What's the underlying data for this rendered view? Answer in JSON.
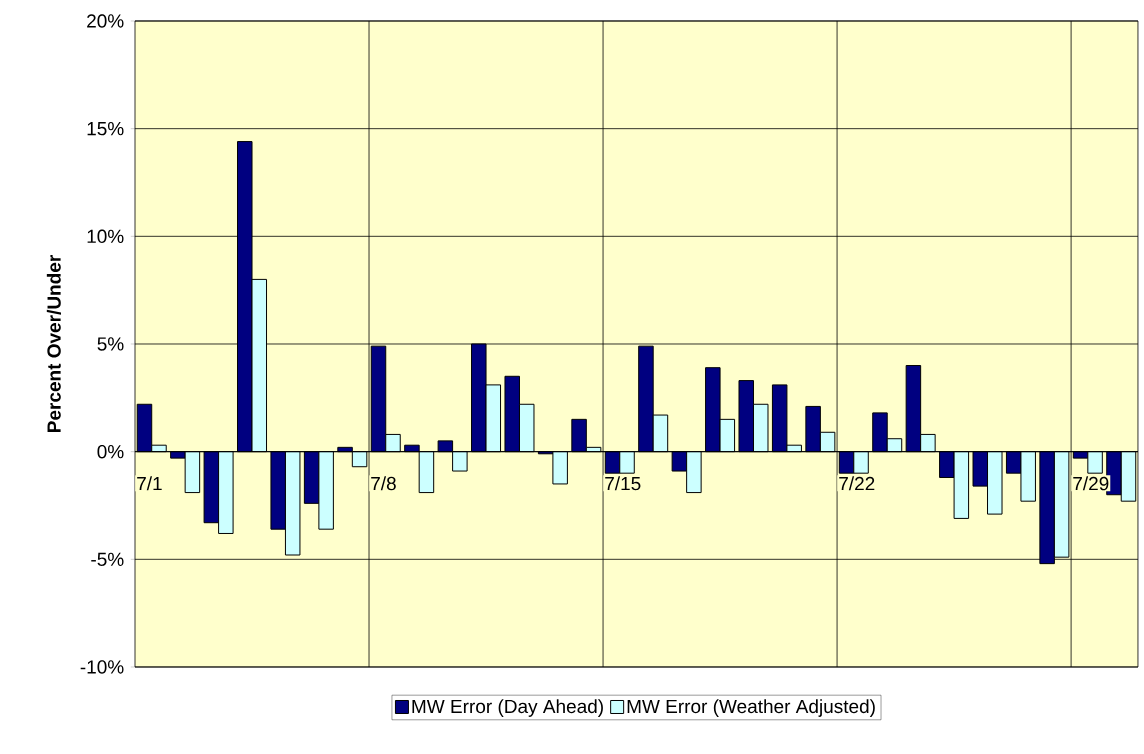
{
  "chart_data": {
    "type": "bar",
    "ylabel": "Percent Over/Under",
    "categories": [
      "7/1",
      null,
      null,
      null,
      null,
      null,
      null,
      "7/8",
      null,
      null,
      null,
      null,
      null,
      null,
      "7/15",
      null,
      null,
      null,
      null,
      null,
      null,
      "7/22",
      null,
      null,
      null,
      null,
      null,
      null,
      "7/29",
      null
    ],
    "series": [
      {
        "name": "MW Error (Day Ahead)",
        "color": "#000080",
        "values": [
          2.2,
          -0.3,
          -3.3,
          14.4,
          -3.6,
          -2.4,
          0.2,
          4.9,
          0.3,
          0.5,
          5.0,
          3.5,
          -0.1,
          1.5,
          -1.0,
          4.9,
          -0.9,
          3.9,
          3.3,
          3.1,
          2.1,
          -1.0,
          1.8,
          4.0,
          -1.2,
          -1.6,
          -1.0,
          -5.2,
          -0.3,
          -2.0
        ]
      },
      {
        "name": "MW Error (Weather Adjusted)",
        "color": "#ccffff",
        "values": [
          0.3,
          -1.9,
          -3.8,
          8.0,
          -4.8,
          -3.6,
          -0.7,
          0.8,
          -1.9,
          -0.9,
          3.1,
          2.2,
          -1.5,
          0.2,
          -1.0,
          1.7,
          -1.9,
          1.5,
          2.2,
          0.3,
          0.9,
          -1.0,
          0.6,
          0.8,
          -3.1,
          -2.9,
          -2.3,
          -4.9,
          -1.0,
          -2.3
        ]
      }
    ],
    "ylim": [
      -10,
      20
    ],
    "yticks": [
      {
        "value": -10,
        "label": "-10%"
      },
      {
        "value": -5,
        "label": "-5%"
      },
      {
        "value": 0,
        "label": "0%"
      },
      {
        "value": 5,
        "label": "5%"
      },
      {
        "value": 10,
        "label": "10%"
      },
      {
        "value": 15,
        "label": "15%"
      },
      {
        "value": 20,
        "label": "20%"
      }
    ],
    "grid": true,
    "legend": "bottom"
  }
}
